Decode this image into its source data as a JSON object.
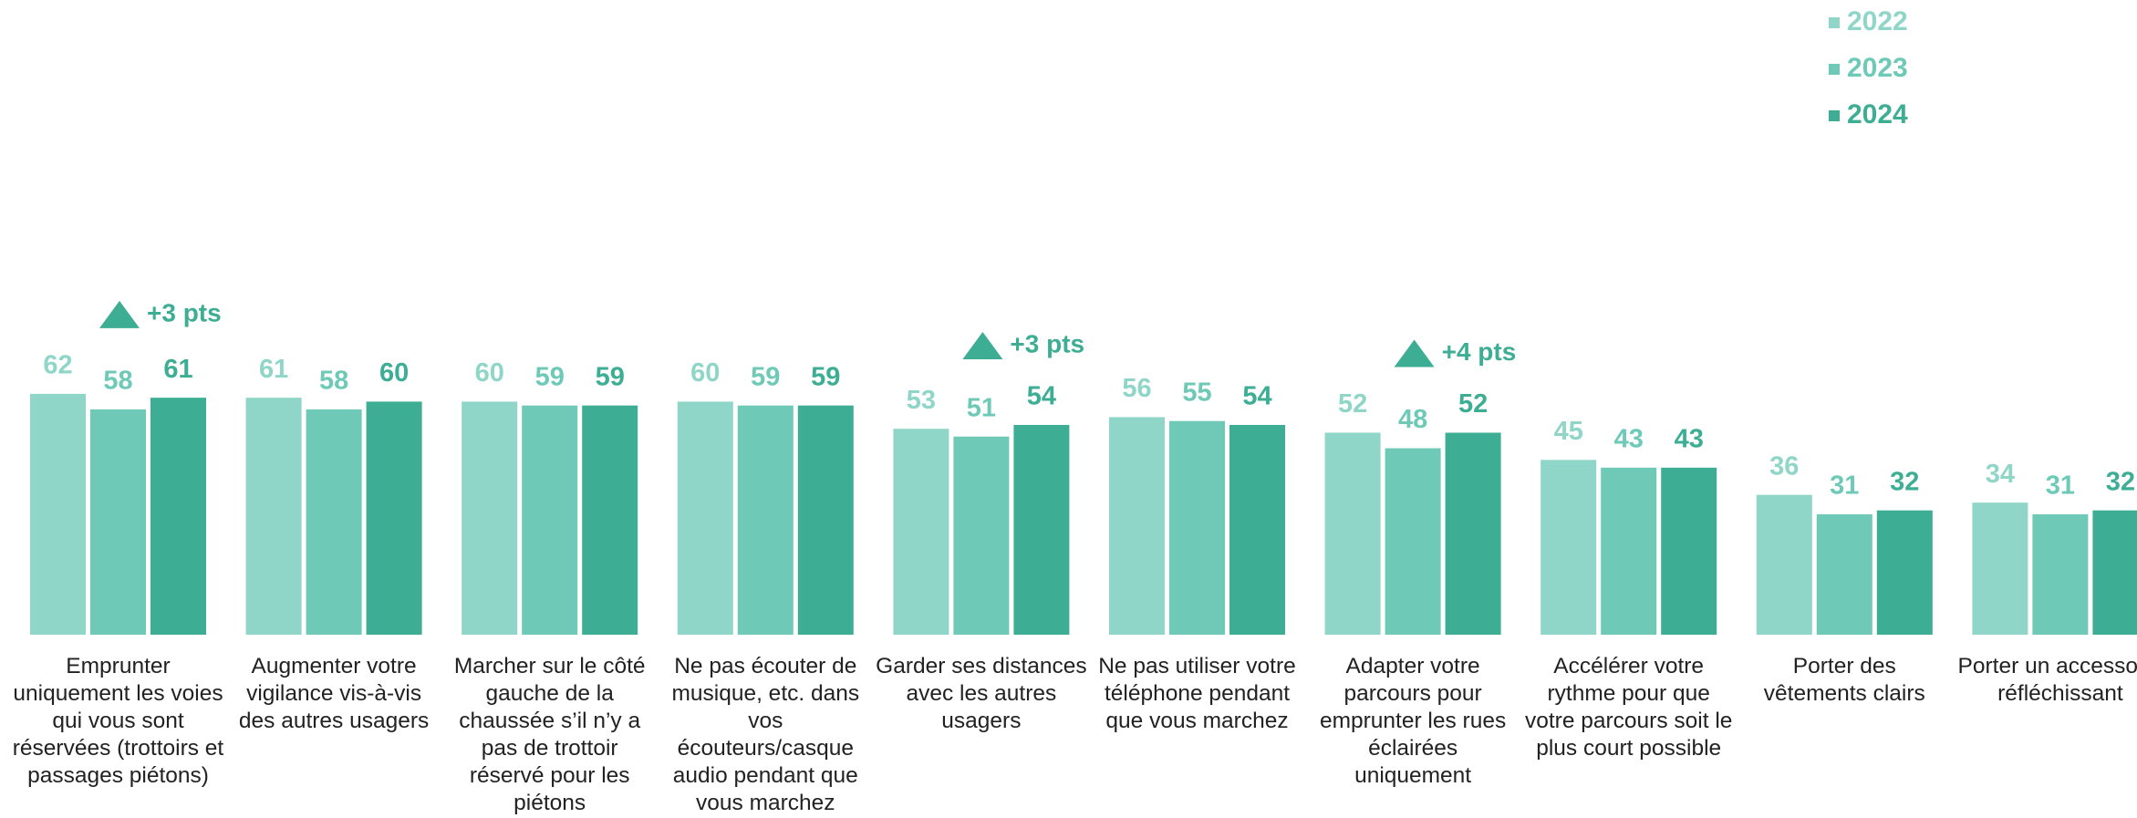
{
  "chart_data": {
    "type": "bar",
    "categories": [
      "Emprunter uniquement les voies qui vous sont réservées (trottoirs et passages piétons)",
      "Augmenter votre vigilance vis-à-vis des autres usagers",
      "Marcher sur le côté gauche de la chaussée s’il n’y a pas de trottoir réservé pour les piétons",
      "Ne pas écouter de musique, etc. dans vos écouteurs/casque audio pendant que vous marchez",
      "Garder ses distances avec les autres usagers",
      "Ne pas utiliser votre téléphone pendant que vous marchez",
      "Adapter votre parcours pour emprunter les rues éclairées uniquement",
      "Accélérer votre rythme pour que votre parcours soit le plus court possible",
      "Porter des vêtements clairs",
      "Porter un accessoire réfléchissant"
    ],
    "series": [
      {
        "name": "2022",
        "color": "#8fd6c8",
        "values": [
          62,
          61,
          60,
          60,
          53,
          56,
          52,
          45,
          36,
          34
        ]
      },
      {
        "name": "2023",
        "color": "#6ecab7",
        "values": [
          58,
          58,
          59,
          59,
          51,
          55,
          48,
          43,
          31,
          31
        ]
      },
      {
        "name": "2024",
        "color": "#3dae94",
        "values": [
          61,
          60,
          59,
          59,
          54,
          54,
          52,
          43,
          32,
          32
        ]
      }
    ],
    "annotations": [
      "+3 pts",
      null,
      null,
      null,
      "+3 pts",
      null,
      "+4 pts",
      null,
      null,
      null
    ],
    "annotation_color": "#3dae94",
    "legend": "top-right"
  }
}
